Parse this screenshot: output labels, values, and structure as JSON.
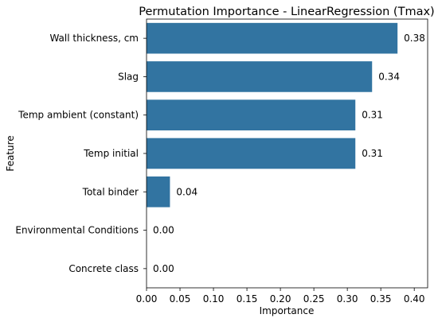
{
  "chart_data": {
    "type": "bar",
    "orientation": "horizontal",
    "title": "Permutation Importance - LinearRegression (Tmax)",
    "xlabel": "Importance",
    "ylabel": "Feature",
    "categories": [
      "Wall thickness, cm",
      "Slag",
      "Temp ambient (constant)",
      "Temp initial",
      "Total binder",
      "Environmental Conditions",
      "Concrete class"
    ],
    "values": [
      0.375,
      0.337,
      0.312,
      0.312,
      0.035,
      0.0,
      0.0
    ],
    "data_labels": [
      "0.38",
      "0.34",
      "0.31",
      "0.31",
      "0.04",
      "0.00",
      "0.00"
    ],
    "xlim": [
      0.0,
      0.42
    ],
    "xticks": [
      0.0,
      0.05,
      0.1,
      0.15,
      0.2,
      0.25,
      0.3,
      0.35,
      0.4
    ],
    "xtick_labels": [
      "0.00",
      "0.05",
      "0.10",
      "0.15",
      "0.20",
      "0.25",
      "0.30",
      "0.35",
      "0.40"
    ],
    "bar_color": "#3274a1",
    "grid": false,
    "legend": false
  }
}
